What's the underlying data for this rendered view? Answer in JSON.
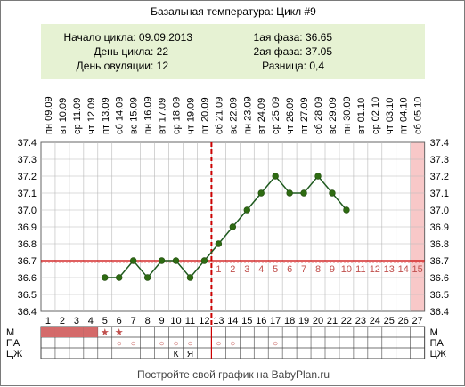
{
  "title": "Базальная температура: Цикл #9",
  "info": {
    "cycle_start": "Начало цикла: 09.09.2013",
    "cycle_day": "День цикла: 22",
    "ovulation_day": "День овуляции: 12",
    "phase1": "1ая фаза: 36.65",
    "phase2": "2ая фаза: 37.05",
    "difference": "Разница: 0,4"
  },
  "footer": "Постройте свой график на BabyPlan.ru",
  "colors": {
    "info_bg": "#E6F2D3",
    "line": "#1F5A1F",
    "point": "#2E6B12",
    "coverline": "#CC0000",
    "ovulation_line": "#CC0000",
    "grid": "#B8B8B8",
    "menses": "#D46A6A",
    "highlight_col": "#F8C8C8",
    "after_ovulation_numbers": "#C0504D",
    "marks": "#C0504D"
  },
  "chart_data": {
    "type": "line",
    "days": [
      1,
      2,
      3,
      4,
      5,
      6,
      7,
      8,
      9,
      10,
      11,
      12,
      13,
      14,
      15,
      16,
      17,
      18,
      19,
      20,
      21,
      22,
      23,
      24,
      25,
      26,
      27
    ],
    "weekdays": [
      "пн",
      "вт",
      "ср",
      "чт",
      "пт",
      "сб",
      "вс",
      "пн",
      "вт",
      "ср",
      "чт",
      "пт",
      "сб",
      "вс",
      "пн",
      "вт",
      "ср",
      "чт",
      "пт",
      "сб",
      "вс",
      "пн",
      "вт",
      "ср",
      "чт",
      "пт",
      "сб"
    ],
    "dates": [
      "09.09",
      "10.09",
      "11.09",
      "12.09",
      "13.09",
      "14.09",
      "15.09",
      "16.09",
      "17.09",
      "18.09",
      "19.09",
      "20.09",
      "21.09",
      "22.09",
      "23.09",
      "24.09",
      "25.09",
      "26.09",
      "27.09",
      "28.09",
      "29.09",
      "30.09",
      "01.10",
      "02.10",
      "03.10",
      "04.10",
      "05.10"
    ],
    "y_ticks": [
      "37.4",
      "37.3",
      "37.2",
      "37.1",
      "37.0",
      "36.9",
      "36.8",
      "36.7",
      "36.6",
      "36.5",
      "36.4"
    ],
    "ylim": [
      36.4,
      37.4
    ],
    "series": [
      {
        "values": [
          null,
          null,
          null,
          null,
          36.6,
          36.6,
          36.7,
          36.6,
          36.7,
          36.7,
          36.6,
          36.7,
          36.8,
          36.9,
          37.0,
          37.1,
          37.2,
          37.1,
          37.1,
          37.2,
          37.1,
          37.0,
          null,
          null,
          null,
          null,
          null
        ]
      }
    ],
    "coverline": 36.7,
    "ovulation_day": 12,
    "post_ovulation_numbers": [
      "1",
      "2",
      "3",
      "4",
      "5",
      "6",
      "7",
      "8",
      "9",
      "10",
      "11",
      "12",
      "13",
      "14",
      "15"
    ],
    "highlighted_day": 27,
    "row_labels_left": [
      "М",
      "ПА",
      "ЦЖ"
    ],
    "row_labels_right": [
      "М",
      "ПА",
      "ЦЖ"
    ],
    "menses_days": [
      1,
      2,
      3,
      4
    ],
    "star_days": [
      5,
      6
    ],
    "star_symbol": "★",
    "pa_days": [
      6,
      7,
      9,
      10,
      11,
      13,
      14,
      17
    ],
    "pa_symbol": "○",
    "cm_marks": [
      {
        "day": 10,
        "text": "К"
      },
      {
        "day": 11,
        "text": "Я"
      }
    ],
    "grid": true
  }
}
